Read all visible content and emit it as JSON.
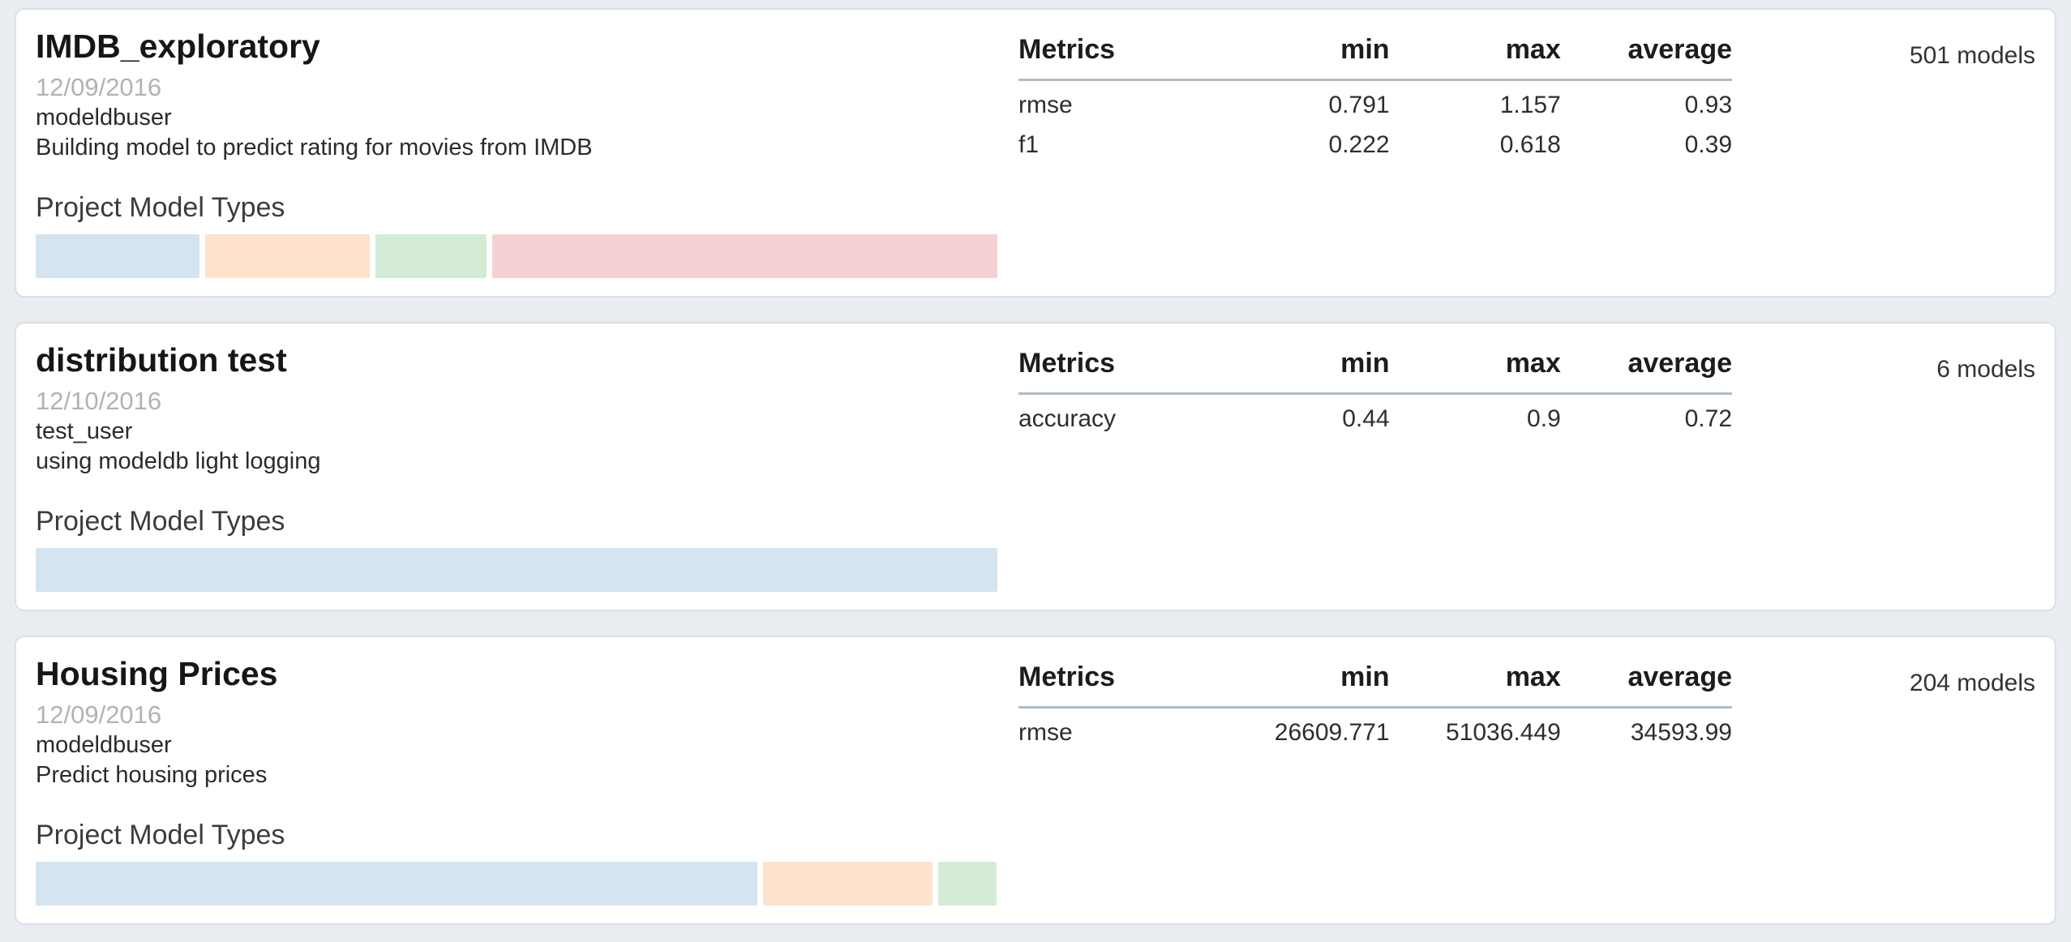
{
  "page_background": "#e9edf1",
  "colors": {
    "blue": "#d4e4f0",
    "orange": "#fde2cd",
    "green": "#d3ebd5",
    "pink": "#f6d1d4",
    "divider": "#aebcc9"
  },
  "labels": {
    "model_types_heading": "Project Model Types"
  },
  "metrics_table": {
    "headers": [
      "Metrics",
      "min",
      "max",
      "average"
    ]
  },
  "projects": [
    {
      "title": "IMDB_exploratory",
      "date": "12/09/2016",
      "author": "modeldbuser",
      "description": "Building model to predict rating for movies from IMDB",
      "models_count": "501 models",
      "metrics": [
        {
          "name": "rmse",
          "min": "0.791",
          "max": "1.157",
          "average": "0.93"
        },
        {
          "name": "f1",
          "min": "0.222",
          "max": "0.618",
          "average": "0.39"
        }
      ],
      "model_type_segments": [
        {
          "color": "blue",
          "percent": 17.1
        },
        {
          "color": "orange",
          "percent": 17.1
        },
        {
          "color": "green",
          "percent": 11.6
        },
        {
          "color": "pink",
          "percent": 52.6
        }
      ]
    },
    {
      "title": "distribution test",
      "date": "12/10/2016",
      "author": "test_user",
      "description": "using modeldb light logging",
      "models_count": "6 models",
      "metrics": [
        {
          "name": "accuracy",
          "min": "0.44",
          "max": "0.9",
          "average": "0.72"
        }
      ],
      "model_type_segments": [
        {
          "color": "blue",
          "percent": 100
        }
      ]
    },
    {
      "title": "Housing Prices",
      "date": "12/09/2016",
      "author": "modeldbuser",
      "description": "Predict housing prices",
      "models_count": "204 models",
      "metrics": [
        {
          "name": "rmse",
          "min": "26609.771",
          "max": "51036.449",
          "average": "34593.99"
        }
      ],
      "model_type_segments": [
        {
          "color": "blue",
          "percent": 75.0
        },
        {
          "color": "orange",
          "percent": 17.7
        },
        {
          "color": "green",
          "percent": 6.0
        }
      ]
    }
  ]
}
